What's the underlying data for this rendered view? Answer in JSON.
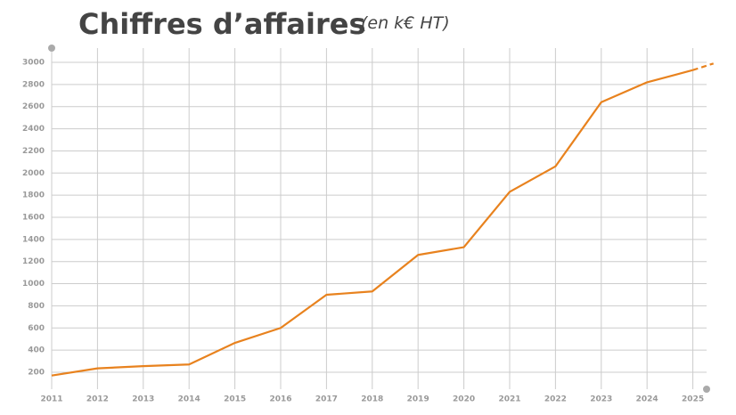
{
  "chart_data": {
    "type": "line",
    "title": "Chiffres d’affaires",
    "subtitle": "(en k€ HT)",
    "x": [
      2011,
      2012,
      2013,
      2014,
      2015,
      2016,
      2017,
      2018,
      2019,
      2020,
      2021,
      2022,
      2023,
      2024,
      2025
    ],
    "series": [
      {
        "color": "#e8821e",
        "values": [
          170,
          235,
          255,
          270,
          465,
          600,
          900,
          930,
          1260,
          1330,
          1830,
          2060,
          2640,
          2820,
          2930
        ]
      },
      {
        "color": "#e8821e",
        "dashed": true,
        "x": [
          2025,
          2025.45
        ],
        "values": [
          2930,
          2990
        ]
      }
    ],
    "xlim": [
      2011,
      2025.3
    ],
    "xticks": [
      2011,
      2012,
      2013,
      2014,
      2015,
      2016,
      2017,
      2018,
      2019,
      2020,
      2021,
      2022,
      2023,
      2024,
      2025
    ],
    "ylim": [
      100,
      3100
    ],
    "yticks": [
      200,
      400,
      600,
      800,
      1000,
      1200,
      1400,
      1600,
      1800,
      2000,
      2200,
      2400,
      2600,
      2800,
      3000
    ],
    "grid": true
  }
}
